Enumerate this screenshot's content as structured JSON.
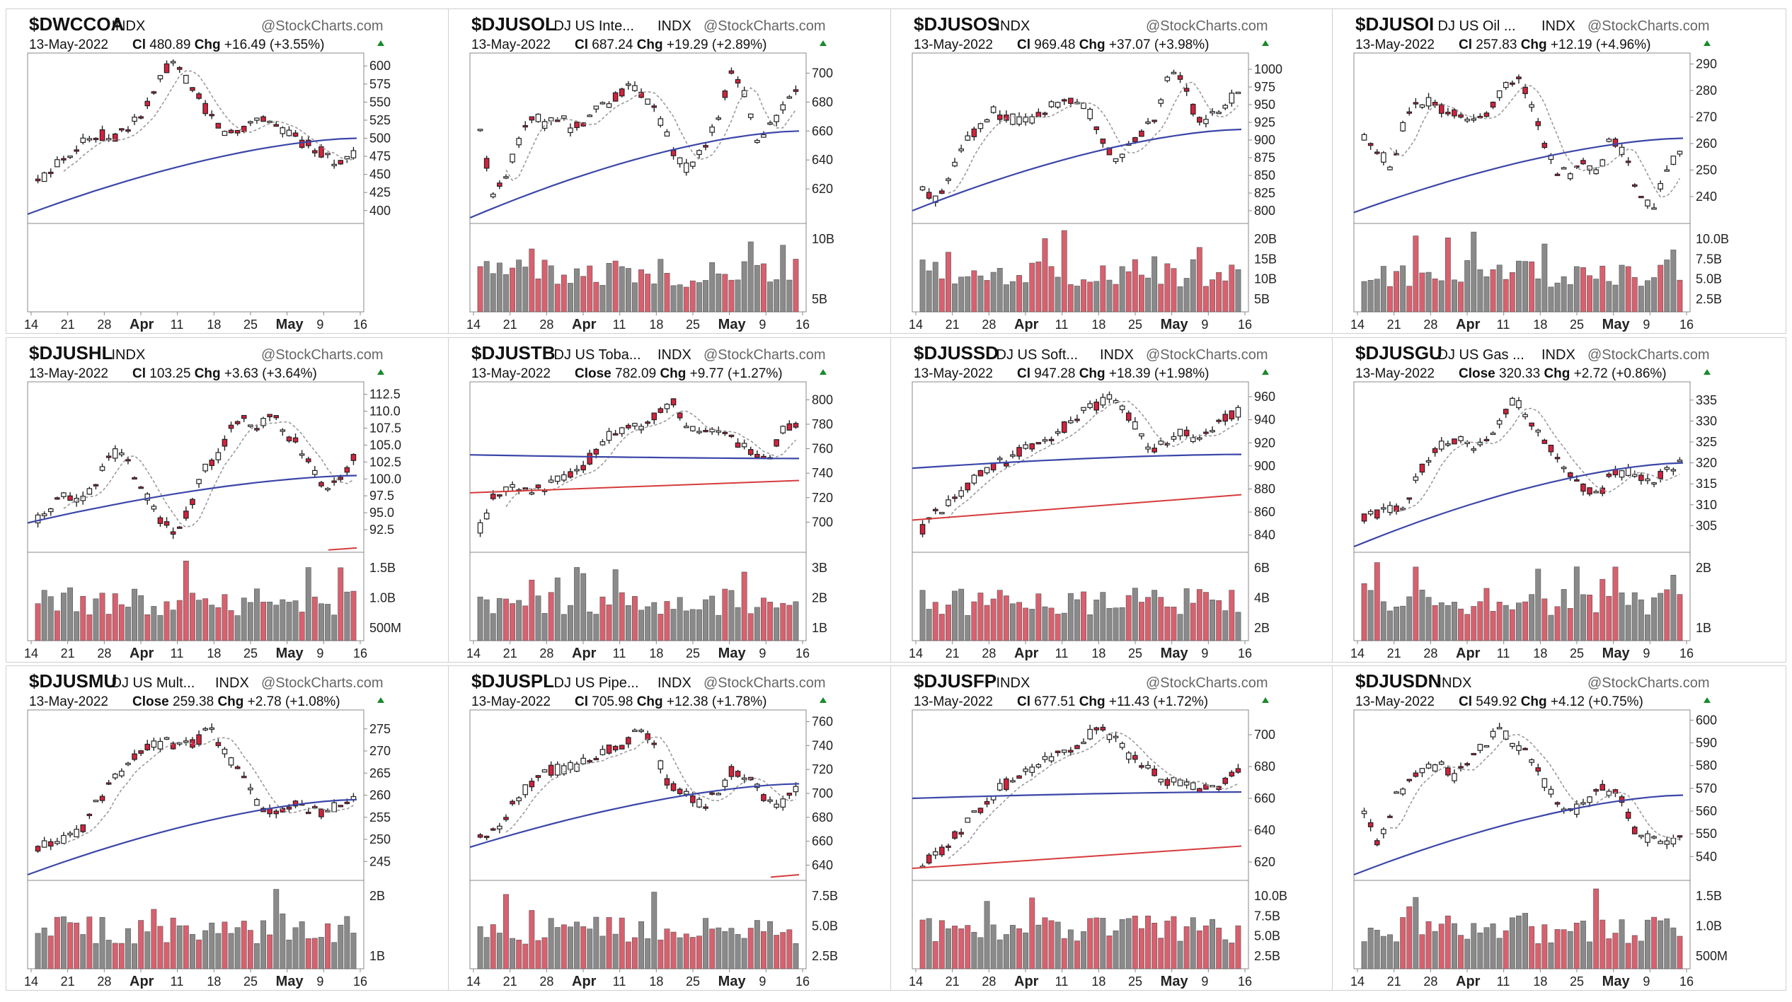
{
  "meta": {
    "date": "13-May-2022",
    "brand": "@StockCharts.com",
    "market": "INDX"
  },
  "colors": {
    "up": "#ffffff",
    "down": "#d6213d",
    "vol_up": "#8a8a8a",
    "vol_down": "#d9606e",
    "ma_short": "#9a9a9a",
    "ma_long": "#3b46a8",
    "ma_red": "#d63b3b"
  },
  "x_ticks": [
    "14",
    "21",
    "28",
    "Apr",
    "11",
    "18",
    "25",
    "May",
    "9",
    "16"
  ],
  "bold_ticks": [
    "Apr",
    "May"
  ],
  "chart_data": [
    {
      "symbol": "$DWCCOA",
      "desc": "",
      "close_label": "Cl",
      "close": "480.89",
      "chg_label": "Chg",
      "chg": "+16.49 (+3.55%)",
      "price_ticks": [
        "600",
        "575",
        "550",
        "525",
        "500",
        "475",
        "450",
        "425",
        "400"
      ],
      "price_min": 390,
      "price_max": 610,
      "volume_ticks": [],
      "path": [
        440,
        450,
        470,
        480,
        495,
        498,
        505,
        500,
        510,
        520,
        535,
        560,
        595,
        600,
        585,
        560,
        540,
        520,
        505,
        510,
        520,
        530,
        525,
        515,
        505,
        495,
        490,
        480,
        470,
        465,
        480
      ],
      "ma50_start": 395,
      "ma50_end": 500,
      "has_red_ma": false,
      "volume": false
    },
    {
      "symbol": "$DJUSOL",
      "desc": "DJ US Inte...",
      "close_label": "Cl",
      "close": "687.24",
      "chg_label": "Chg",
      "chg": "+19.29 (+2.89%)",
      "price_ticks": [
        "700",
        "680",
        "660",
        "640",
        "620"
      ],
      "price_min": 600,
      "price_max": 710,
      "volume_ticks": [
        "10B",
        "5B"
      ],
      "path": [
        660,
        615,
        630,
        655,
        670,
        665,
        672,
        660,
        668,
        675,
        680,
        690,
        688,
        680,
        660,
        640,
        632,
        650,
        665,
        700,
        690,
        655,
        662,
        675,
        687
      ],
      "ma50_start": 600,
      "ma50_end": 660,
      "has_red_ma": false,
      "volume": true
    },
    {
      "symbol": "$DJUSOS",
      "desc": "",
      "close_label": "Cl",
      "close": "969.48",
      "chg_label": "Chg",
      "chg": "+37.07 (+3.98%)",
      "price_ticks": [
        "1000",
        "975",
        "950",
        "925",
        "900",
        "875",
        "850",
        "825",
        "800"
      ],
      "price_min": 790,
      "price_max": 1015,
      "volume_ticks": [
        "20B",
        "15B",
        "10B",
        "5B"
      ],
      "path": [
        830,
        815,
        850,
        900,
        915,
        940,
        935,
        925,
        930,
        945,
        955,
        960,
        945,
        900,
        870,
        890,
        910,
        930,
        1000,
        990,
        925,
        930,
        950,
        969
      ],
      "ma50_start": 800,
      "ma50_end": 915,
      "has_red_ma": false,
      "volume": true
    },
    {
      "symbol": "$DJUSOI",
      "desc": "DJ US Oil ...",
      "close_label": "Cl",
      "close": "257.83",
      "chg_label": "Chg",
      "chg": "+12.19 (+4.96%)",
      "price_ticks": [
        "290",
        "280",
        "270",
        "260",
        "250",
        "240"
      ],
      "price_min": 232,
      "price_max": 292,
      "volume_ticks": [
        "10.0B",
        "7.5B",
        "5.0B",
        "2.5B"
      ],
      "path": [
        262,
        258,
        250,
        270,
        275,
        276,
        272,
        270,
        268,
        272,
        280,
        285,
        278,
        262,
        250,
        248,
        252,
        248,
        262,
        256,
        240,
        236,
        248,
        258
      ],
      "ma50_start": 234,
      "ma50_end": 262,
      "has_red_ma": false,
      "volume": true
    },
    {
      "symbol": "$DJUSHL",
      "desc": "",
      "close_label": "Cl",
      "close": "103.25",
      "chg_label": "Chg",
      "chg": "+3.63 (+3.64%)",
      "price_ticks": [
        "112.5",
        "110.0",
        "107.5",
        "105.0",
        "102.5",
        "100.0",
        "97.5",
        "95.0",
        "92.5"
      ],
      "price_min": 90,
      "price_max": 113.5,
      "volume_ticks": [
        "1.5B",
        "1.0B",
        "500M"
      ],
      "path": [
        94,
        96,
        98,
        97,
        99,
        103,
        104,
        101,
        97,
        93.5,
        92.5,
        95,
        101,
        103,
        107,
        109,
        108,
        109.5,
        107,
        105,
        101,
        99,
        100,
        103.3
      ],
      "ma50_start": 93.5,
      "ma50_end": 100.5,
      "has_red_ma": true,
      "red_start": 89.5,
      "red_end": 89.8,
      "volume": true
    },
    {
      "symbol": "$DJUSTB",
      "desc": "DJ US Toba...",
      "close_label": "Close",
      "close": "782.09",
      "chg_label": "Chg",
      "chg": "+9.77 (+1.27%)",
      "price_ticks": [
        "800",
        "780",
        "760",
        "740",
        "720",
        "700"
      ],
      "price_min": 680,
      "price_max": 810,
      "volume_ticks": [
        "3B",
        "2B",
        "1B"
      ],
      "path": [
        695,
        720,
        728,
        730,
        725,
        730,
        735,
        742,
        752,
        768,
        775,
        778,
        780,
        790,
        800,
        780,
        775,
        772,
        770,
        762,
        758,
        752,
        775,
        782
      ],
      "ma50_start": 755,
      "ma50_end": 752,
      "has_red_ma": true,
      "red_start": 724,
      "red_end": 734,
      "volume": true
    },
    {
      "symbol": "$DJUSSD",
      "desc": "DJ US Soft...",
      "close_label": "Cl",
      "close": "947.28",
      "chg_label": "Chg",
      "chg": "+18.39 (+1.98%)",
      "price_ticks": [
        "960",
        "940",
        "920",
        "900",
        "880",
        "860",
        "840"
      ],
      "price_min": 830,
      "price_max": 968,
      "volume_ticks": [
        "6B",
        "4B",
        "2B"
      ],
      "path": [
        845,
        860,
        870,
        880,
        892,
        900,
        905,
        915,
        920,
        925,
        935,
        945,
        952,
        958,
        950,
        930,
        912,
        920,
        928,
        925,
        930,
        940,
        947
      ],
      "ma50_start": 898,
      "ma50_end": 910,
      "has_red_ma": true,
      "red_start": 853,
      "red_end": 875,
      "volume": true
    },
    {
      "symbol": "$DJUSGU",
      "desc": "DJ US Gas ...",
      "close_label": "Close",
      "close": "320.33",
      "chg_label": "Chg",
      "chg": "+2.72 (+0.86%)",
      "price_ticks": [
        "335",
        "330",
        "325",
        "320",
        "315",
        "310",
        "305"
      ],
      "price_min": 300,
      "price_max": 338,
      "volume_ticks": [
        "2B",
        "1B"
      ],
      "path": [
        307,
        308,
        309,
        310,
        318,
        322,
        325,
        326,
        324,
        325,
        330,
        336,
        330,
        325,
        322,
        318,
        314,
        312,
        317,
        318,
        316,
        315,
        318,
        320
      ],
      "ma50_start": 300,
      "ma50_end": 320,
      "has_red_ma": false,
      "volume": true
    },
    {
      "symbol": "$DJUSMU",
      "desc": "DJ US Mult...",
      "close_label": "Close",
      "close": "259.38",
      "chg_label": "Chg",
      "chg": "+2.78 (+1.08%)",
      "price_ticks": [
        "275",
        "270",
        "265",
        "260",
        "255",
        "250",
        "245"
      ],
      "price_min": 242,
      "price_max": 278,
      "volume_ticks": [
        "2B",
        "1B"
      ],
      "path": [
        248,
        249,
        250,
        252,
        258,
        262,
        266,
        270,
        271,
        272,
        271,
        272,
        275,
        270,
        265,
        260,
        256,
        257,
        258,
        257,
        256,
        258,
        259.4
      ],
      "ma50_start": 242,
      "ma50_end": 259,
      "has_red_ma": false,
      "volume": true
    },
    {
      "symbol": "$DJUSPL",
      "desc": "DJ US Pipe...",
      "close_label": "Cl",
      "close": "705.98",
      "chg_label": "Chg",
      "chg": "+12.38 (+1.78%)",
      "price_ticks": [
        "760",
        "740",
        "720",
        "700",
        "680",
        "660",
        "640"
      ],
      "price_min": 632,
      "price_max": 765,
      "volume_ticks": [
        "7.5B",
        "5.0B",
        "2.5B"
      ],
      "path": [
        665,
        670,
        690,
        705,
        718,
        720,
        722,
        728,
        735,
        740,
        755,
        740,
        705,
        700,
        690,
        700,
        720,
        715,
        695,
        690,
        706
      ],
      "ma50_start": 655,
      "ma50_end": 708,
      "has_red_ma": true,
      "red_start": 630,
      "red_end": 632,
      "volume": true
    },
    {
      "symbol": "$DJUSFP",
      "desc": "",
      "close_label": "Cl",
      "close": "677.51",
      "chg_label": "Chg",
      "chg": "+11.43 (+1.72%)",
      "price_ticks": [
        "700",
        "680",
        "660",
        "640",
        "620"
      ],
      "price_min": 612,
      "price_max": 712,
      "volume_ticks": [
        "10.0B",
        "7.5B",
        "5.0B",
        "2.5B"
      ],
      "path": [
        618,
        625,
        635,
        645,
        655,
        665,
        672,
        678,
        682,
        688,
        692,
        700,
        704,
        695,
        685,
        678,
        672,
        670,
        668,
        665,
        670,
        677.5
      ],
      "ma50_start": 660,
      "ma50_end": 664,
      "has_red_ma": true,
      "red_start": 616,
      "red_end": 630,
      "volume": true
    },
    {
      "symbol": "$DJUSDN",
      "desc": "",
      "close_label": "Cl",
      "close": "549.92",
      "chg_label": "Chg",
      "chg": "+4.12 (+0.75%)",
      "price_ticks": [
        "600",
        "590",
        "580",
        "570",
        "560",
        "550",
        "540"
      ],
      "price_min": 532,
      "price_max": 602,
      "volume_ticks": [
        "1.5B",
        "1.0B",
        "500M"
      ],
      "path": [
        560,
        545,
        565,
        572,
        578,
        580,
        575,
        582,
        590,
        595,
        590,
        585,
        572,
        562,
        560,
        565,
        570,
        566,
        552,
        548,
        545,
        550
      ],
      "ma50_start": 532,
      "ma50_end": 567,
      "has_red_ma": false,
      "volume": true
    }
  ]
}
